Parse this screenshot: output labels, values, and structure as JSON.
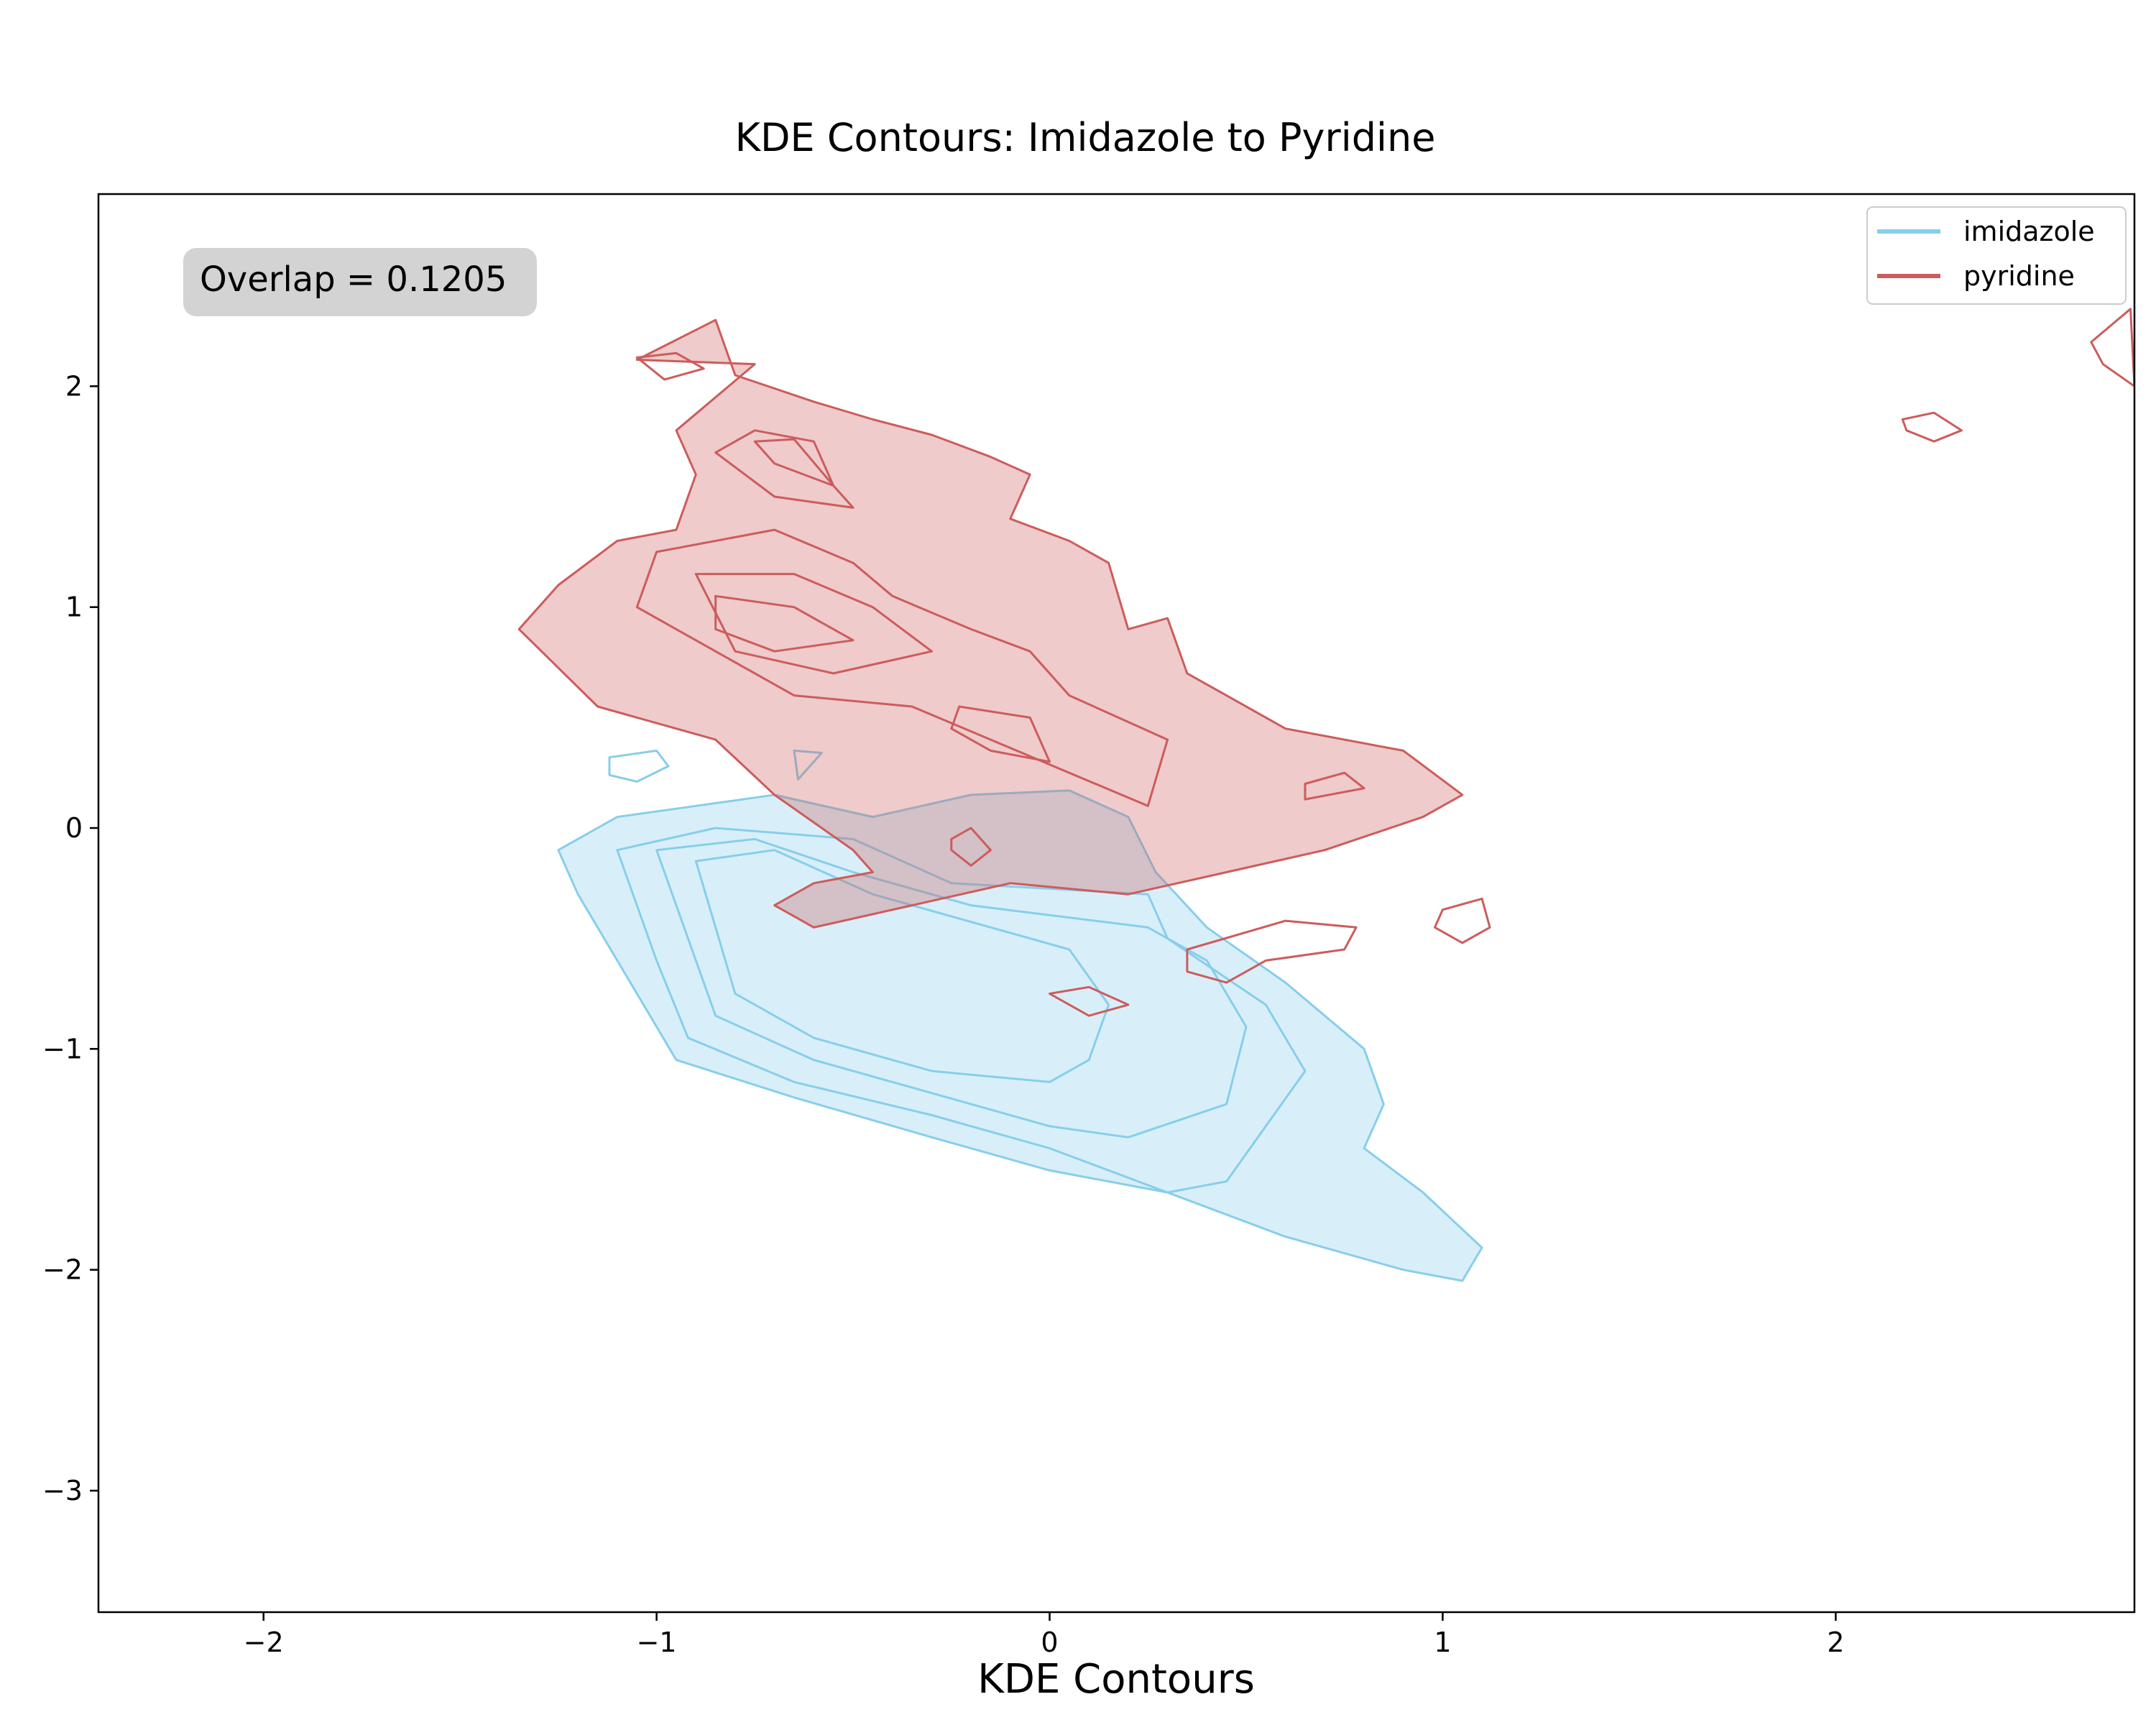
{
  "chart_data": {
    "type": "contour",
    "title": "KDE Contours: Imidazole to Pyridine",
    "xlabel": "KDE Contours",
    "ylabel": "",
    "xlim": [
      -2.42,
      2.76
    ],
    "ylim": [
      -3.55,
      2.87
    ],
    "xticks": [
      -2,
      -1,
      0,
      1,
      2
    ],
    "yticks": [
      -3,
      -2,
      -1,
      0,
      1,
      2
    ],
    "xtick_labels": [
      "−2",
      "−1",
      "0",
      "1",
      "2"
    ],
    "ytick_labels": [
      "−3",
      "−2",
      "−1",
      "0",
      "1",
      "2"
    ],
    "grid": false,
    "legend_position": "top-right",
    "annotation": {
      "text": "Overlap = 0.1205",
      "position": "top-left"
    },
    "series": [
      {
        "name": "imidazole",
        "color": "#87CEEB",
        "fill_color": "#87CEEB",
        "contours": [
          [
            [
              -0.7,
              0.15
            ],
            [
              -0.45,
              0.05
            ],
            [
              -0.2,
              0.15
            ],
            [
              0.05,
              0.17
            ],
            [
              0.2,
              0.05
            ],
            [
              0.27,
              -0.2
            ],
            [
              0.4,
              -0.45
            ],
            [
              0.6,
              -0.7
            ],
            [
              0.8,
              -1.0
            ],
            [
              0.85,
              -1.25
            ],
            [
              0.8,
              -1.45
            ],
            [
              0.95,
              -1.65
            ],
            [
              1.1,
              -1.9
            ],
            [
              1.05,
              -2.05
            ],
            [
              0.9,
              -2.0
            ],
            [
              0.6,
              -1.85
            ],
            [
              0.3,
              -1.65
            ],
            [
              0.0,
              -1.55
            ],
            [
              -0.3,
              -1.4
            ],
            [
              -0.65,
              -1.22
            ],
            [
              -0.95,
              -1.05
            ],
            [
              -1.05,
              -0.75
            ],
            [
              -1.2,
              -0.3
            ],
            [
              -1.25,
              -0.1
            ],
            [
              -1.1,
              0.05
            ],
            [
              -0.9,
              0.1
            ]
          ],
          [
            [
              -1.12,
              0.32
            ],
            [
              -1.0,
              0.35
            ],
            [
              -0.97,
              0.28
            ],
            [
              -1.05,
              0.21
            ],
            [
              -1.12,
              0.24
            ]
          ],
          [
            [
              -0.65,
              0.35
            ],
            [
              -0.58,
              0.34
            ],
            [
              -0.64,
              0.22
            ]
          ],
          [
            [
              -1.1,
              -0.1
            ],
            [
              -0.85,
              0.0
            ],
            [
              -0.5,
              -0.05
            ],
            [
              -0.25,
              -0.25
            ],
            [
              0.25,
              -0.3
            ],
            [
              0.3,
              -0.5
            ],
            [
              0.55,
              -0.8
            ],
            [
              0.65,
              -1.1
            ],
            [
              0.55,
              -1.35
            ],
            [
              0.45,
              -1.6
            ],
            [
              0.3,
              -1.65
            ],
            [
              0.0,
              -1.45
            ],
            [
              -0.3,
              -1.3
            ],
            [
              -0.65,
              -1.15
            ],
            [
              -0.92,
              -0.95
            ],
            [
              -1.0,
              -0.6
            ]
          ],
          [
            [
              -1.0,
              -0.1
            ],
            [
              -0.75,
              -0.05
            ],
            [
              -0.5,
              -0.2
            ],
            [
              -0.2,
              -0.35
            ],
            [
              0.25,
              -0.45
            ],
            [
              0.4,
              -0.6
            ],
            [
              0.5,
              -0.9
            ],
            [
              0.45,
              -1.25
            ],
            [
              0.2,
              -1.4
            ],
            [
              0.0,
              -1.35
            ],
            [
              -0.3,
              -1.2
            ],
            [
              -0.6,
              -1.05
            ],
            [
              -0.85,
              -0.85
            ],
            [
              -0.92,
              -0.5
            ]
          ],
          [
            [
              -0.9,
              -0.15
            ],
            [
              -0.7,
              -0.1
            ],
            [
              -0.45,
              -0.3
            ],
            [
              -0.15,
              -0.45
            ],
            [
              0.05,
              -0.55
            ],
            [
              0.15,
              -0.8
            ],
            [
              0.1,
              -1.05
            ],
            [
              0.0,
              -1.15
            ],
            [
              -0.3,
              -1.1
            ],
            [
              -0.6,
              -0.95
            ],
            [
              -0.8,
              -0.75
            ],
            [
              -0.85,
              -0.45
            ]
          ]
        ]
      },
      {
        "name": "pyridine",
        "color": "#CD5C5C",
        "fill_color": "#CD5C5C",
        "contours": [
          [
            [
              -1.05,
              2.12
            ],
            [
              -0.85,
              2.3
            ],
            [
              -0.8,
              2.05
            ],
            [
              -0.6,
              1.93
            ],
            [
              -0.45,
              1.85
            ],
            [
              -0.3,
              1.78
            ],
            [
              -0.15,
              1.68
            ],
            [
              -0.05,
              1.6
            ],
            [
              -0.1,
              1.4
            ],
            [
              0.05,
              1.3
            ],
            [
              0.15,
              1.2
            ],
            [
              0.2,
              0.9
            ],
            [
              0.3,
              0.95
            ],
            [
              0.35,
              0.7
            ],
            [
              0.45,
              0.6
            ],
            [
              0.6,
              0.45
            ],
            [
              0.9,
              0.35
            ],
            [
              1.05,
              0.15
            ],
            [
              0.95,
              0.05
            ],
            [
              0.7,
              -0.1
            ],
            [
              0.45,
              -0.2
            ],
            [
              0.2,
              -0.3
            ],
            [
              -0.1,
              -0.25
            ],
            [
              -0.35,
              -0.35
            ],
            [
              -0.6,
              -0.45
            ],
            [
              -0.7,
              -0.35
            ],
            [
              -0.6,
              -0.25
            ],
            [
              -0.45,
              -0.2
            ],
            [
              -0.5,
              -0.1
            ],
            [
              -0.7,
              0.15
            ],
            [
              -0.85,
              0.4
            ],
            [
              -1.15,
              0.55
            ],
            [
              -1.35,
              0.9
            ],
            [
              -1.25,
              1.1
            ],
            [
              -1.1,
              1.3
            ],
            [
              -0.95,
              1.35
            ],
            [
              -0.9,
              1.6
            ],
            [
              -0.95,
              1.8
            ],
            [
              -0.75,
              2.1
            ]
          ],
          [
            [
              -1.05,
              2.13
            ],
            [
              -0.95,
              2.15
            ],
            [
              -0.88,
              2.08
            ],
            [
              -0.98,
              2.03
            ]
          ],
          [
            [
              -0.85,
              1.7
            ],
            [
              -0.75,
              1.8
            ],
            [
              -0.6,
              1.75
            ],
            [
              -0.55,
              1.55
            ],
            [
              -0.5,
              1.45
            ],
            [
              -0.7,
              1.5
            ]
          ],
          [
            [
              -0.75,
              1.75
            ],
            [
              -0.65,
              1.76
            ],
            [
              -0.55,
              1.55
            ],
            [
              -0.7,
              1.65
            ]
          ],
          [
            [
              -1.0,
              1.25
            ],
            [
              -0.7,
              1.35
            ],
            [
              -0.5,
              1.2
            ],
            [
              -0.4,
              1.05
            ],
            [
              -0.2,
              0.9
            ],
            [
              -0.05,
              0.8
            ],
            [
              0.05,
              0.6
            ],
            [
              0.3,
              0.4
            ],
            [
              0.25,
              0.1
            ],
            [
              0.05,
              0.25
            ],
            [
              -0.15,
              0.4
            ],
            [
              -0.35,
              0.55
            ],
            [
              -0.65,
              0.6
            ],
            [
              -0.85,
              0.8
            ],
            [
              -1.05,
              1.0
            ]
          ],
          [
            [
              -0.9,
              1.15
            ],
            [
              -0.65,
              1.15
            ],
            [
              -0.45,
              1.0
            ],
            [
              -0.3,
              0.8
            ],
            [
              -0.55,
              0.7
            ],
            [
              -0.8,
              0.8
            ]
          ],
          [
            [
              -0.85,
              1.05
            ],
            [
              -0.65,
              1.0
            ],
            [
              -0.5,
              0.85
            ],
            [
              -0.7,
              0.8
            ],
            [
              -0.85,
              0.9
            ]
          ],
          [
            [
              -0.23,
              0.55
            ],
            [
              -0.05,
              0.5
            ],
            [
              0.0,
              0.3
            ],
            [
              -0.15,
              0.35
            ],
            [
              -0.25,
              0.45
            ]
          ],
          [
            [
              0.65,
              0.2
            ],
            [
              0.75,
              0.25
            ],
            [
              0.8,
              0.18
            ],
            [
              0.65,
              0.13
            ]
          ],
          [
            [
              -0.25,
              -0.05
            ],
            [
              -0.2,
              0.0
            ],
            [
              -0.15,
              -0.1
            ],
            [
              -0.2,
              -0.17
            ],
            [
              -0.25,
              -0.1
            ]
          ],
          [
            [
              0.35,
              -0.55
            ],
            [
              0.6,
              -0.42
            ],
            [
              0.78,
              -0.45
            ],
            [
              0.75,
              -0.55
            ],
            [
              0.55,
              -0.6
            ],
            [
              0.45,
              -0.7
            ],
            [
              0.35,
              -0.65
            ]
          ],
          [
            [
              1.0,
              -0.37
            ],
            [
              1.1,
              -0.32
            ],
            [
              1.12,
              -0.45
            ],
            [
              1.05,
              -0.52
            ],
            [
              0.98,
              -0.45
            ]
          ],
          [
            [
              0.0,
              -0.75
            ],
            [
              0.1,
              -0.85
            ],
            [
              0.2,
              -0.8
            ],
            [
              0.1,
              -0.72
            ]
          ],
          [
            [
              2.17,
              1.85
            ],
            [
              2.25,
              1.88
            ],
            [
              2.32,
              1.8
            ],
            [
              2.25,
              1.75
            ],
            [
              2.18,
              1.8
            ]
          ],
          [
            [
              2.65,
              2.2
            ],
            [
              2.75,
              2.35
            ],
            [
              2.76,
              2.0
            ],
            [
              2.68,
              2.1
            ]
          ]
        ]
      }
    ]
  },
  "legend": {
    "items": [
      {
        "label": "imidazole",
        "color": "#87CEEB"
      },
      {
        "label": "pyridine",
        "color": "#CD5C5C"
      }
    ]
  }
}
